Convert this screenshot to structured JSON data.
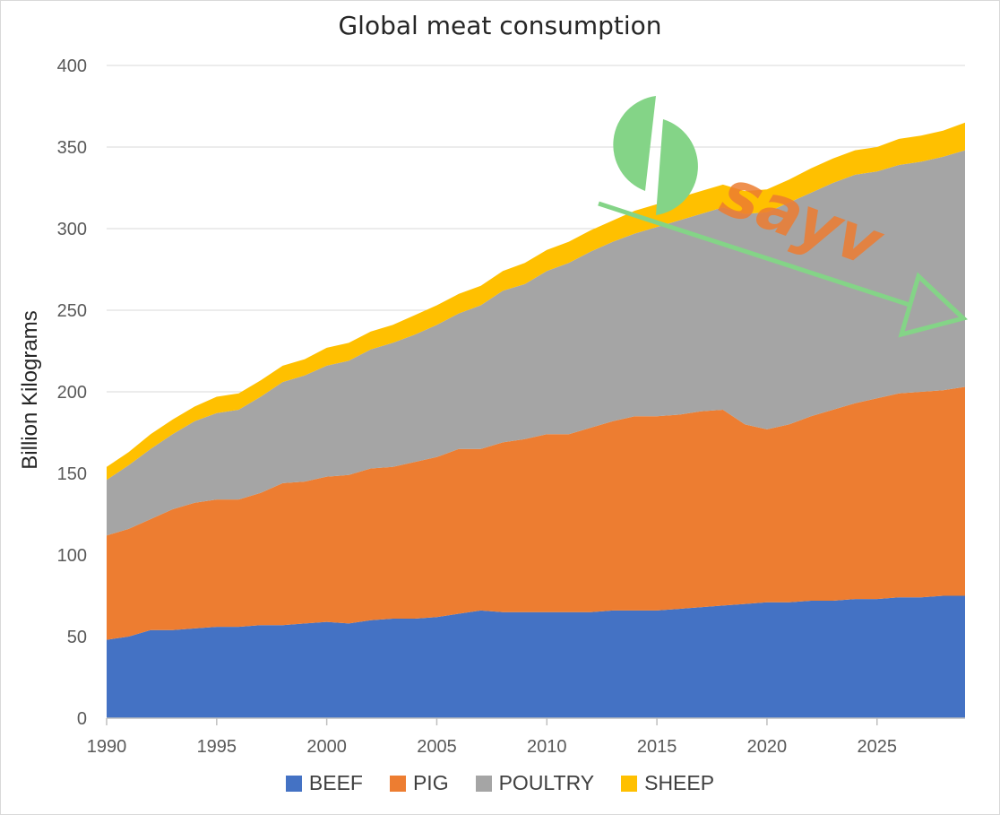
{
  "chart_data": {
    "type": "area",
    "stacked": true,
    "title": "Global meat consumption",
    "xlabel": "",
    "ylabel": "Billion Kilograms",
    "xlim": [
      1990,
      2029
    ],
    "ylim": [
      0,
      400
    ],
    "yticks": [
      0,
      50,
      100,
      150,
      200,
      250,
      300,
      350,
      400
    ],
    "xticks": [
      1990,
      1995,
      2000,
      2005,
      2010,
      2015,
      2020,
      2025
    ],
    "grid": "horizontal",
    "legend_position": "bottom",
    "x": [
      1990,
      1991,
      1992,
      1993,
      1994,
      1995,
      1996,
      1997,
      1998,
      1999,
      2000,
      2001,
      2002,
      2003,
      2004,
      2005,
      2006,
      2007,
      2008,
      2009,
      2010,
      2011,
      2012,
      2013,
      2014,
      2015,
      2016,
      2017,
      2018,
      2019,
      2020,
      2021,
      2022,
      2023,
      2024,
      2025,
      2026,
      2027,
      2028,
      2029
    ],
    "series": [
      {
        "name": "BEEF",
        "color": "#4472c4",
        "values": [
          48,
          50,
          54,
          54,
          55,
          56,
          56,
          57,
          57,
          58,
          59,
          58,
          60,
          61,
          61,
          62,
          64,
          66,
          65,
          65,
          65,
          65,
          65,
          66,
          66,
          66,
          67,
          68,
          69,
          70,
          71,
          71,
          72,
          72,
          73,
          73,
          74,
          74,
          75,
          75
        ]
      },
      {
        "name": "PIG",
        "color": "#ed7d31",
        "values": [
          64,
          66,
          68,
          74,
          77,
          78,
          78,
          81,
          87,
          87,
          89,
          91,
          93,
          93,
          96,
          98,
          101,
          99,
          104,
          106,
          109,
          109,
          113,
          116,
          119,
          119,
          119,
          120,
          120,
          110,
          106,
          109,
          113,
          117,
          120,
          123,
          125,
          126,
          126,
          128
        ]
      },
      {
        "name": "POULTRY",
        "color": "#a5a5a5",
        "values": [
          34,
          39,
          43,
          46,
          50,
          53,
          55,
          59,
          62,
          65,
          68,
          70,
          73,
          76,
          78,
          81,
          83,
          88,
          93,
          95,
          100,
          105,
          108,
          110,
          112,
          116,
          119,
          121,
          124,
          129,
          133,
          136,
          137,
          139,
          140,
          139,
          140,
          141,
          143,
          145
        ]
      },
      {
        "name": "SHEEP",
        "color": "#ffc000",
        "values": [
          8,
          8,
          9,
          9,
          9,
          10,
          10,
          10,
          10,
          10,
          11,
          11,
          11,
          11,
          12,
          12,
          12,
          12,
          12,
          13,
          13,
          13,
          13,
          13,
          14,
          14,
          14,
          14,
          14,
          14,
          14,
          14,
          15,
          15,
          15,
          15,
          16,
          16,
          16,
          17
        ]
      }
    ]
  },
  "legend": {
    "items": [
      {
        "label": "BEEF",
        "color": "#4472c4"
      },
      {
        "label": "PIG",
        "color": "#ed7d31"
      },
      {
        "label": "POULTRY",
        "color": "#a5a5a5"
      },
      {
        "label": "SHEEP",
        "color": "#ffc000"
      }
    ]
  },
  "watermark": {
    "text": "sayv",
    "icon": "split-circle-logo-icon",
    "logo_color": "#84d487",
    "text_color": "#ed7d31",
    "arrow": "trend-down-arrow-icon"
  }
}
